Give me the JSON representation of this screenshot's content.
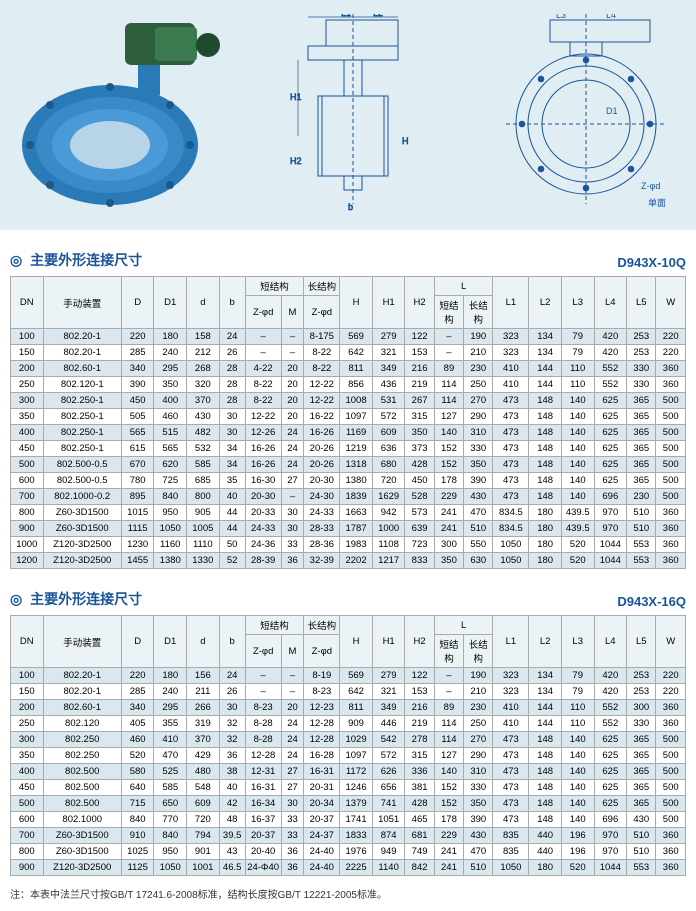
{
  "hero": {
    "labels": {
      "l1": "L1",
      "l2": "L2",
      "h1": "H1",
      "h2": "H2",
      "d": "D",
      "b": "b",
      "h": "H",
      "l4": "L4",
      "l3": "L3",
      "d1": "D1",
      "zphid": "Z-φd",
      "singleface": "单面"
    }
  },
  "section1": {
    "title": "主要外形连接尺寸",
    "code": "D943X-10Q",
    "headers": {
      "dn": "DN",
      "manual": "手动装置",
      "d": "D",
      "d1": "D1",
      "dsmall": "d",
      "b": "b",
      "short": "短结构",
      "long": "长结构",
      "zphid": "Z-φd",
      "m": "M",
      "h": "H",
      "h1": "H1",
      "h2": "H2",
      "l": "L",
      "shortL": "短结构",
      "longL": "长结构",
      "l1": "L1",
      "l2": "L2",
      "l3": "L3",
      "l4": "L4",
      "l5": "L5",
      "w": "W"
    },
    "rows": [
      [
        "100",
        "802.20-1",
        "220",
        "180",
        "158",
        "24",
        "–",
        "–",
        "8-175",
        "569",
        "279",
        "122",
        "–",
        "190",
        "323",
        "134",
        "79",
        "420",
        "253",
        "220"
      ],
      [
        "150",
        "802.20-1",
        "285",
        "240",
        "212",
        "26",
        "–",
        "–",
        "8-22",
        "642",
        "321",
        "153",
        "–",
        "210",
        "323",
        "134",
        "79",
        "420",
        "253",
        "220"
      ],
      [
        "200",
        "802.60-1",
        "340",
        "295",
        "268",
        "28",
        "4-22",
        "20",
        "8-22",
        "811",
        "349",
        "216",
        "89",
        "230",
        "410",
        "144",
        "110",
        "552",
        "330",
        "360"
      ],
      [
        "250",
        "802.120-1",
        "390",
        "350",
        "320",
        "28",
        "8-22",
        "20",
        "12-22",
        "856",
        "436",
        "219",
        "114",
        "250",
        "410",
        "144",
        "110",
        "552",
        "330",
        "360"
      ],
      [
        "300",
        "802.250-1",
        "450",
        "400",
        "370",
        "28",
        "8-22",
        "20",
        "12-22",
        "1008",
        "531",
        "267",
        "114",
        "270",
        "473",
        "148",
        "140",
        "625",
        "365",
        "500"
      ],
      [
        "350",
        "802.250-1",
        "505",
        "460",
        "430",
        "30",
        "12-22",
        "20",
        "16-22",
        "1097",
        "572",
        "315",
        "127",
        "290",
        "473",
        "148",
        "140",
        "625",
        "365",
        "500"
      ],
      [
        "400",
        "802.250-1",
        "565",
        "515",
        "482",
        "30",
        "12-26",
        "24",
        "16-26",
        "1169",
        "609",
        "350",
        "140",
        "310",
        "473",
        "148",
        "140",
        "625",
        "365",
        "500"
      ],
      [
        "450",
        "802.250-1",
        "615",
        "565",
        "532",
        "34",
        "16-26",
        "24",
        "20-26",
        "1219",
        "636",
        "373",
        "152",
        "330",
        "473",
        "148",
        "140",
        "625",
        "365",
        "500"
      ],
      [
        "500",
        "802.500-0.5",
        "670",
        "620",
        "585",
        "34",
        "16-26",
        "24",
        "20-26",
        "1318",
        "680",
        "428",
        "152",
        "350",
        "473",
        "148",
        "140",
        "625",
        "365",
        "500"
      ],
      [
        "600",
        "802.500-0.5",
        "780",
        "725",
        "685",
        "35",
        "16-30",
        "27",
        "20-30",
        "1380",
        "720",
        "450",
        "178",
        "390",
        "473",
        "148",
        "140",
        "625",
        "365",
        "500"
      ],
      [
        "700",
        "802.1000-0.2",
        "895",
        "840",
        "800",
        "40",
        "20-30",
        "–",
        "24-30",
        "1839",
        "1629",
        "528",
        "229",
        "430",
        "473",
        "148",
        "140",
        "696",
        "230",
        "500"
      ],
      [
        "800",
        "Z60-3D1500",
        "1015",
        "950",
        "905",
        "44",
        "20-33",
        "30",
        "24-33",
        "1663",
        "942",
        "573",
        "241",
        "470",
        "834.5",
        "180",
        "439.5",
        "970",
        "510",
        "360"
      ],
      [
        "900",
        "Z60-3D1500",
        "1115",
        "1050",
        "1005",
        "44",
        "24-33",
        "30",
        "28-33",
        "1787",
        "1000",
        "639",
        "241",
        "510",
        "834.5",
        "180",
        "439.5",
        "970",
        "510",
        "360"
      ],
      [
        "1000",
        "Z120-3D2500",
        "1230",
        "1160",
        "1110",
        "50",
        "24-36",
        "33",
        "28-36",
        "1983",
        "1108",
        "723",
        "300",
        "550",
        "1050",
        "180",
        "520",
        "1044",
        "553",
        "360"
      ],
      [
        "1200",
        "Z120-3D2500",
        "1455",
        "1380",
        "1330",
        "52",
        "28-39",
        "36",
        "32-39",
        "2202",
        "1217",
        "833",
        "350",
        "630",
        "1050",
        "180",
        "520",
        "1044",
        "553",
        "360"
      ]
    ]
  },
  "section2": {
    "title": "主要外形连接尺寸",
    "code": "D943X-16Q",
    "rows": [
      [
        "100",
        "802.20-1",
        "220",
        "180",
        "156",
        "24",
        "–",
        "–",
        "8-19",
        "569",
        "279",
        "122",
        "–",
        "190",
        "323",
        "134",
        "79",
        "420",
        "253",
        "220"
      ],
      [
        "150",
        "802.20-1",
        "285",
        "240",
        "211",
        "26",
        "–",
        "–",
        "8-23",
        "642",
        "321",
        "153",
        "–",
        "210",
        "323",
        "134",
        "79",
        "420",
        "253",
        "220"
      ],
      [
        "200",
        "802.60-1",
        "340",
        "295",
        "266",
        "30",
        "8-23",
        "20",
        "12-23",
        "811",
        "349",
        "216",
        "89",
        "230",
        "410",
        "144",
        "110",
        "552",
        "300",
        "360"
      ],
      [
        "250",
        "802.120",
        "405",
        "355",
        "319",
        "32",
        "8-28",
        "24",
        "12-28",
        "909",
        "446",
        "219",
        "114",
        "250",
        "410",
        "144",
        "110",
        "552",
        "330",
        "360"
      ],
      [
        "300",
        "802.250",
        "460",
        "410",
        "370",
        "32",
        "8-28",
        "24",
        "12-28",
        "1029",
        "542",
        "278",
        "114",
        "270",
        "473",
        "148",
        "140",
        "625",
        "365",
        "500"
      ],
      [
        "350",
        "802.250",
        "520",
        "470",
        "429",
        "36",
        "12-28",
        "24",
        "16-28",
        "1097",
        "572",
        "315",
        "127",
        "290",
        "473",
        "148",
        "140",
        "625",
        "365",
        "500"
      ],
      [
        "400",
        "802.500",
        "580",
        "525",
        "480",
        "38",
        "12-31",
        "27",
        "16-31",
        "1172",
        "626",
        "336",
        "140",
        "310",
        "473",
        "148",
        "140",
        "625",
        "365",
        "500"
      ],
      [
        "450",
        "802.500",
        "640",
        "585",
        "548",
        "40",
        "16-31",
        "27",
        "20-31",
        "1246",
        "656",
        "381",
        "152",
        "330",
        "473",
        "148",
        "140",
        "625",
        "365",
        "500"
      ],
      [
        "500",
        "802.500",
        "715",
        "650",
        "609",
        "42",
        "16-34",
        "30",
        "20-34",
        "1379",
        "741",
        "428",
        "152",
        "350",
        "473",
        "148",
        "140",
        "625",
        "365",
        "500"
      ],
      [
        "600",
        "802.1000",
        "840",
        "770",
        "720",
        "48",
        "16-37",
        "33",
        "20-37",
        "1741",
        "1051",
        "465",
        "178",
        "390",
        "473",
        "148",
        "140",
        "696",
        "430",
        "500"
      ],
      [
        "700",
        "Z60-3D1500",
        "910",
        "840",
        "794",
        "39.5",
        "20-37",
        "33",
        "24-37",
        "1833",
        "874",
        "681",
        "229",
        "430",
        "835",
        "440",
        "196",
        "970",
        "510",
        "360"
      ],
      [
        "800",
        "Z60-3D1500",
        "1025",
        "950",
        "901",
        "43",
        "20-40",
        "36",
        "24-40",
        "1976",
        "949",
        "749",
        "241",
        "470",
        "835",
        "440",
        "196",
        "970",
        "510",
        "360"
      ],
      [
        "900",
        "Z120-3D2500",
        "1125",
        "1050",
        "1001",
        "46.5",
        "24-Φ40",
        "36",
        "24-40",
        "2225",
        "1140",
        "842",
        "241",
        "510",
        "1050",
        "180",
        "520",
        "1044",
        "553",
        "360"
      ]
    ]
  },
  "footnote": "注：本表中法兰尺寸按GB/T 17241.6-2008标准，结构长度按GB/T 12221-2005标准。"
}
